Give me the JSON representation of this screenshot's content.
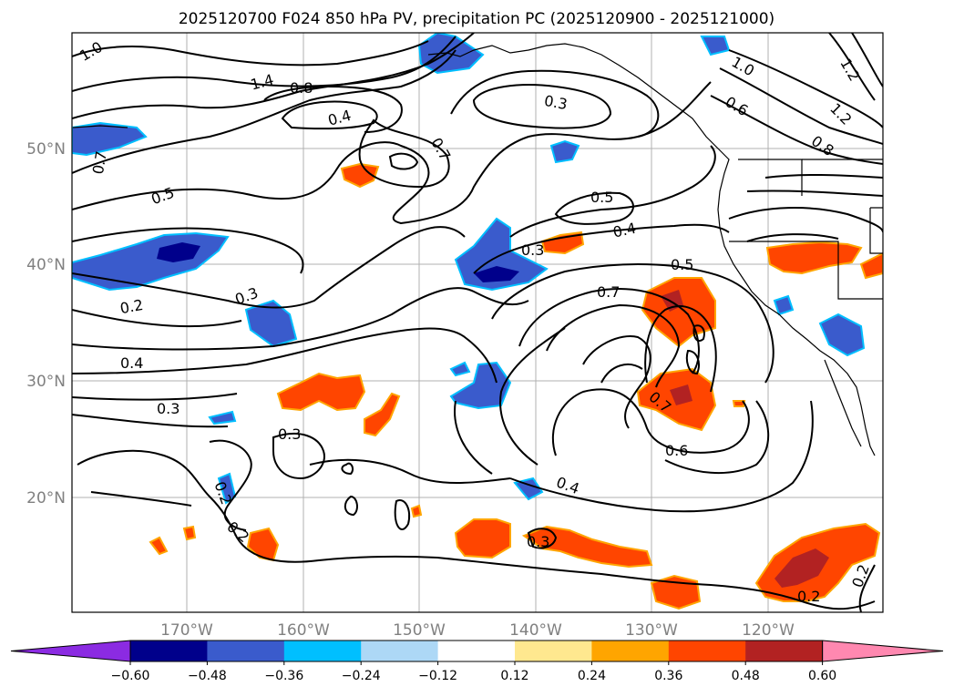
{
  "title": "2025120700 F024 850 hPa PV, precipitation PC (2025120900 - 2025121000)",
  "lat_labels": [
    "50°N",
    "40°N",
    "30°N",
    "20°N"
  ],
  "lon_labels": [
    "170°W",
    "160°W",
    "150°W",
    "140°W",
    "130°W",
    "120°W"
  ],
  "contour_labels": [
    "1.0",
    "1.4",
    "0.8",
    "0.4",
    "0.7",
    "0.5",
    "0.3",
    "0.2",
    "0.4",
    "0.3",
    "0.3",
    "0.2",
    "0.2",
    "1.0",
    "0.6",
    "1.2",
    "1.2",
    "0.8",
    "0.3",
    "0.5",
    "0.4",
    "0.5",
    "0.7",
    "0.3",
    "0.7",
    "0.6",
    "0.4",
    "0.3",
    "0.2",
    "0.2",
    "0.7"
  ],
  "colorbar": {
    "colors": [
      "#8b2be2",
      "#00008b",
      "#3a5bcc",
      "#00bfff",
      "#add8f6",
      "#ffffff",
      "#ffe88f",
      "#ffa500",
      "#ff4500",
      "#b22222",
      "#ff88b0"
    ],
    "tick_labels": [
      "−0.60",
      "−0.48",
      "−0.36",
      "−0.24",
      "−0.12",
      "0.12",
      "0.24",
      "0.36",
      "0.48",
      "0.60"
    ]
  },
  "colors": {
    "positive_core": "#ff4500",
    "positive_edge": "#ffa500",
    "positive_max": "#b22222",
    "negative_core": "#3a5bcc",
    "negative_edge": "#00bfff",
    "negative_max": "#00008b"
  }
}
